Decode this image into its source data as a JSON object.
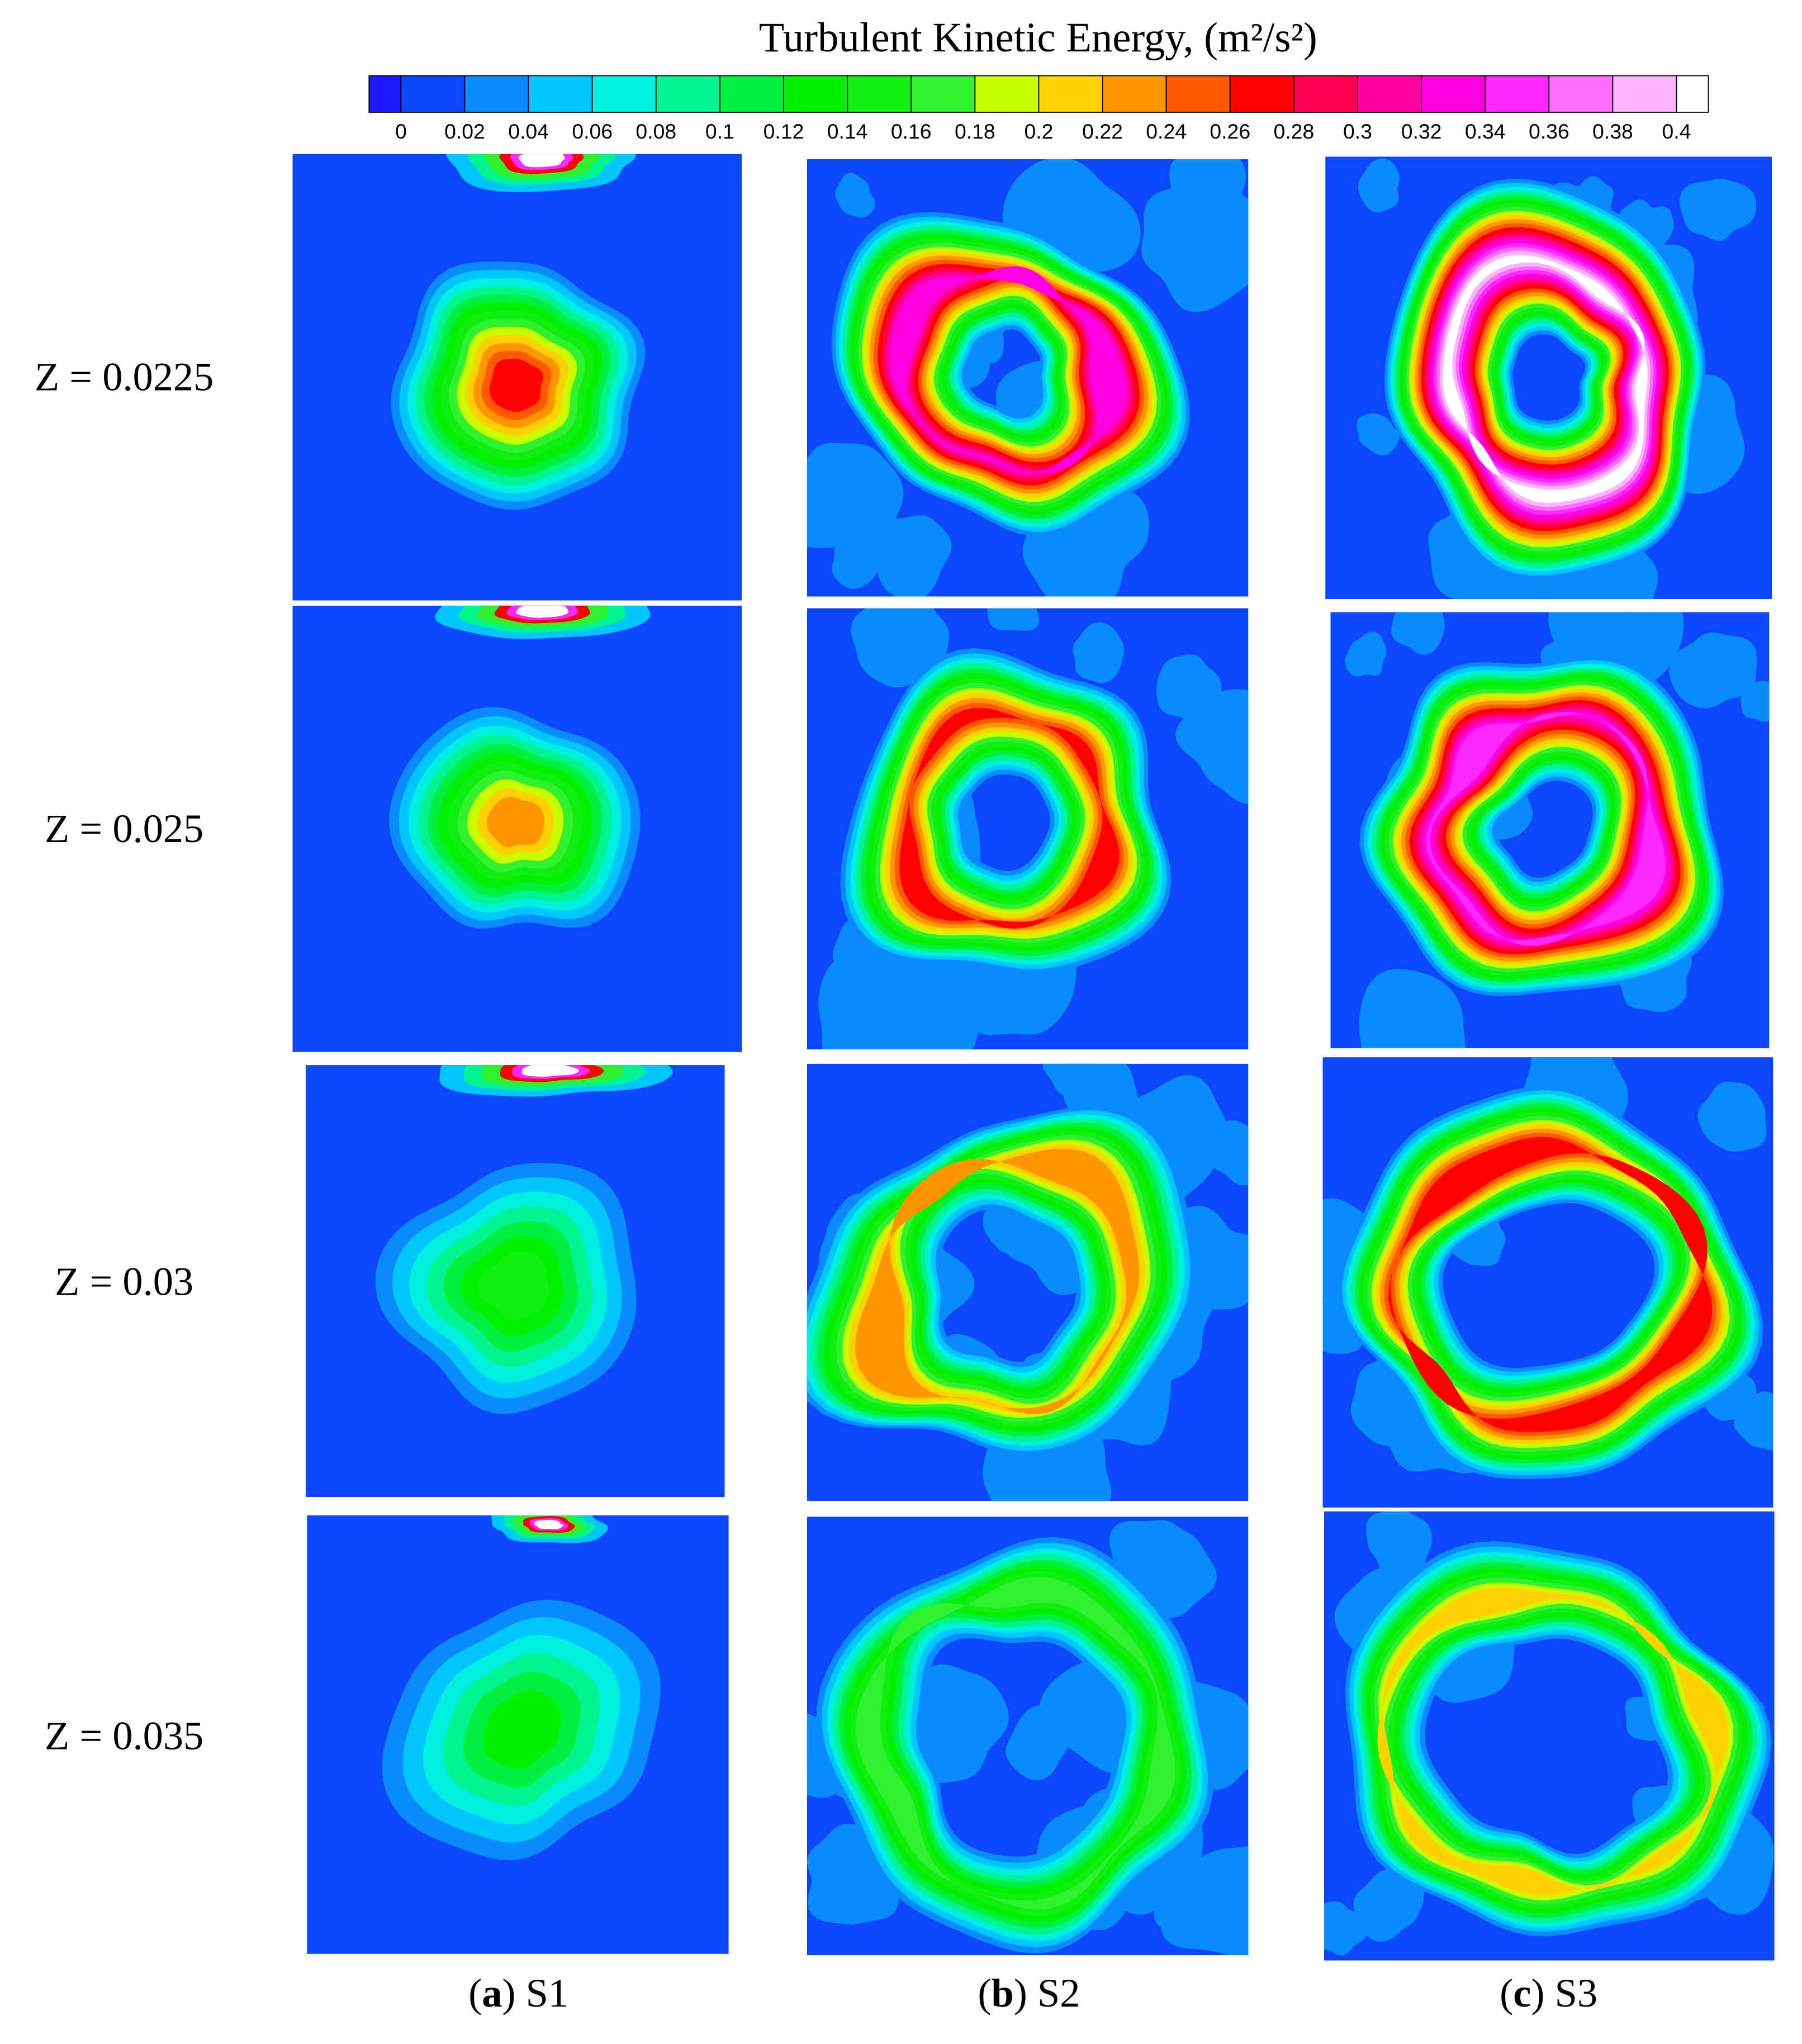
{
  "chart_data": {
    "type": "contour",
    "title": "Turbulent Kinetic Energy,  (m²/s²)",
    "colorbar": {
      "ticks": [
        0,
        0.02,
        0.04,
        0.06,
        0.08,
        0.1,
        0.12,
        0.14,
        0.16,
        0.18,
        0.2,
        0.22,
        0.24,
        0.26,
        0.28,
        0.3,
        0.32,
        0.34,
        0.36,
        0.38,
        0.4
      ],
      "colors": [
        "#1a1aff",
        "#0a47ff",
        "#0a8cff",
        "#00c8ff",
        "#00f0e0",
        "#00f590",
        "#00f040",
        "#00f000",
        "#10f010",
        "#30f030",
        "#c8ff00",
        "#ffd200",
        "#ff9600",
        "#ff5a00",
        "#ff0000",
        "#ff0050",
        "#ff00a0",
        "#ff00e0",
        "#ff28ff",
        "#ff6eff",
        "#ffb4ff",
        "#ffffff"
      ]
    },
    "rows": [
      "Z = 0.0225",
      "Z = 0.025",
      "Z = 0.03",
      "Z = 0.035"
    ],
    "columns": [
      [
        "(",
        "a",
        ") S1"
      ],
      [
        "(",
        "b",
        ") S2"
      ],
      [
        "(",
        "c",
        ") S3"
      ]
    ]
  }
}
